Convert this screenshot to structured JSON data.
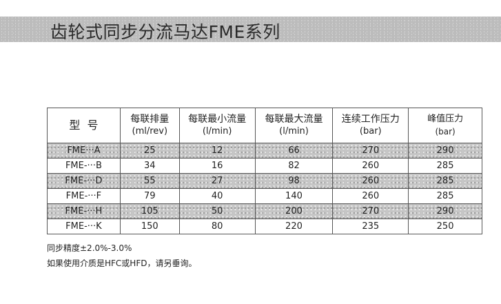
{
  "title": "齿轮式同步分流马达FME系列",
  "table": {
    "headers": [
      {
        "label": "型  号",
        "unit": ""
      },
      {
        "label": "每联排量",
        "unit": "(ml/rev)"
      },
      {
        "label": "每联最小流量",
        "unit": "(l/min)"
      },
      {
        "label": "每联最大流量",
        "unit": "(l/min)"
      },
      {
        "label": "连续工作压力",
        "unit": "(bar)"
      },
      {
        "label": "峰值压力",
        "unit": "(bar)"
      }
    ],
    "rows": [
      [
        "FME···A",
        "25",
        "12",
        "66",
        "270",
        "290"
      ],
      [
        "FME-···B",
        "34",
        "16",
        "82",
        "260",
        "285"
      ],
      [
        "FME-···D",
        "55",
        "27",
        "98",
        "260",
        "285"
      ],
      [
        "FME-···F",
        "79",
        "40",
        "140",
        "260",
        "285"
      ],
      [
        "FME-···H",
        "105",
        "50",
        "200",
        "270",
        "290"
      ],
      [
        "FME-···K",
        "150",
        "80",
        "220",
        "235",
        "250"
      ]
    ]
  },
  "notes": [
    "同步精度±2.0%-3.0%",
    "如果使用介质是HFC或HFD，请另垂询。"
  ]
}
